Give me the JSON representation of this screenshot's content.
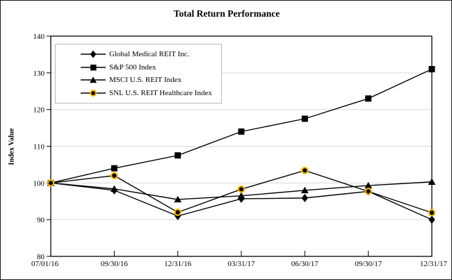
{
  "title": "Total Return Performance",
  "chart_data": {
    "type": "line",
    "title": "Total Return Performance",
    "xlabel": "",
    "ylabel": "Index Value",
    "ylim": [
      80,
      140
    ],
    "yticks": [
      80,
      90,
      100,
      110,
      120,
      130,
      140
    ],
    "grid": true,
    "legend_position": "top-left-inside",
    "categories": [
      "07/01/16",
      "09/30/16",
      "12/31/16",
      "03/31/17",
      "06/30/17",
      "09/30/17",
      "12/31/17"
    ],
    "series": [
      {
        "name": "Global Medical REIT Inc.",
        "marker": "diamond",
        "values": [
          100,
          98,
          91,
          95.7,
          95.9,
          97.7,
          90
        ]
      },
      {
        "name": "S&P 500 Index",
        "marker": "square",
        "values": [
          100,
          104,
          107.5,
          114,
          117.5,
          123,
          131
        ]
      },
      {
        "name": "MSCI U.S. REIT Index",
        "marker": "triangle",
        "values": [
          100,
          98.4,
          95.5,
          96.5,
          98,
          99.3,
          100.3
        ]
      },
      {
        "name": "SNL U.S. REIT Healthcare Index",
        "marker": "circle",
        "values": [
          100,
          102,
          92,
          98.3,
          103.4,
          97.7,
          91.9
        ]
      }
    ],
    "colors": {
      "line": "#000000",
      "marker_fill": "#000000",
      "circle_ring": "#F0B400",
      "grid": "#d9d9d9",
      "axis": "#000000",
      "legend_border": "#b9b9b9"
    }
  }
}
